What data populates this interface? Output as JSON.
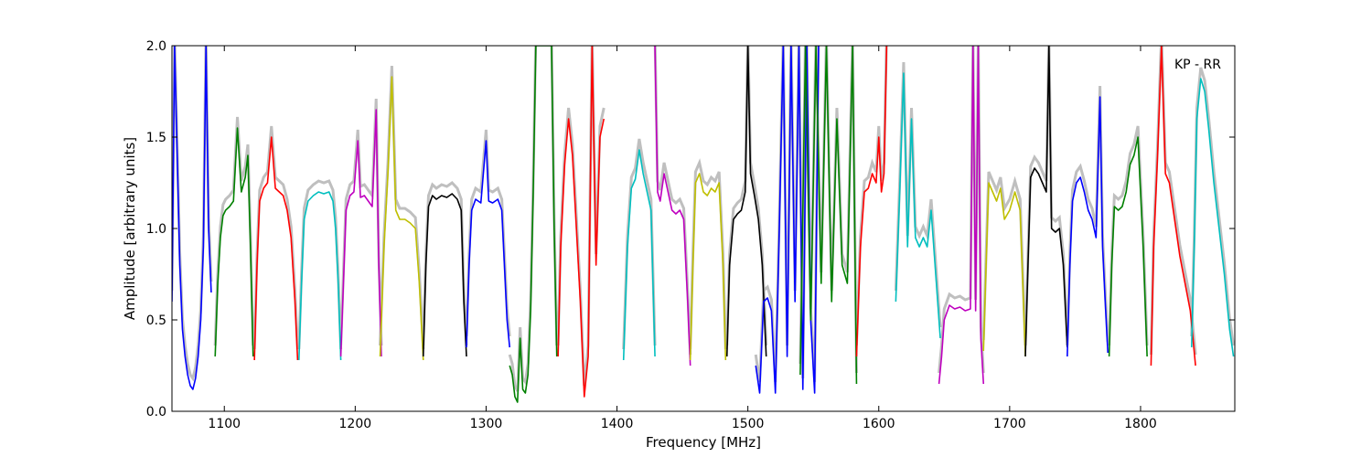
{
  "chart_data": {
    "type": "line",
    "title": "",
    "annotation": "KP - RR",
    "xlabel": "Frequency [MHz]",
    "ylabel": "Amplitude [arbitrary units]",
    "xlim": [
      1060,
      1872
    ],
    "ylim": [
      0.0,
      2.0
    ],
    "xticks": [
      1100,
      1200,
      1300,
      1400,
      1500,
      1600,
      1700,
      1800
    ],
    "xtick_labels": [
      "1100",
      "1200",
      "1300",
      "1400",
      "1500",
      "1600",
      "1700",
      "1800"
    ],
    "yticks": [
      0.0,
      0.5,
      1.0,
      1.5,
      2.0
    ],
    "ytick_labels": [
      "0.0",
      "0.5",
      "1.0",
      "1.5",
      "2.0"
    ],
    "grid": false,
    "background_color": "#bfbfbf",
    "series": [
      {
        "color": "#0000ff",
        "x": [
          1060,
          1062,
          1064,
          1066,
          1068,
          1070,
          1072,
          1074,
          1076,
          1078,
          1080,
          1082,
          1084,
          1086,
          1088,
          1090
        ],
        "y": [
          0.6,
          2.0,
          1.4,
          0.8,
          0.45,
          0.3,
          0.2,
          0.14,
          0.12,
          0.18,
          0.3,
          0.5,
          0.9,
          2.0,
          1.0,
          0.65
        ]
      },
      {
        "color": "#008000",
        "x": [
          1093,
          1095,
          1097,
          1099,
          1101,
          1104,
          1107,
          1110,
          1113,
          1116,
          1118,
          1120,
          1122
        ],
        "y": [
          0.3,
          0.7,
          0.95,
          1.07,
          1.1,
          1.12,
          1.15,
          1.55,
          1.2,
          1.28,
          1.4,
          0.9,
          0.3
        ]
      },
      {
        "color": "#ff0000",
        "x": [
          1123,
          1125,
          1127,
          1130,
          1133,
          1136,
          1139,
          1142,
          1145,
          1148,
          1151,
          1154,
          1156
        ],
        "y": [
          0.28,
          0.8,
          1.15,
          1.22,
          1.25,
          1.5,
          1.22,
          1.2,
          1.18,
          1.1,
          0.95,
          0.6,
          0.28
        ]
      },
      {
        "color": "#00bfbf",
        "x": [
          1157,
          1159,
          1161,
          1164,
          1168,
          1172,
          1176,
          1180,
          1183,
          1185,
          1187,
          1189
        ],
        "y": [
          0.28,
          0.7,
          1.05,
          1.15,
          1.18,
          1.2,
          1.19,
          1.2,
          1.15,
          1.0,
          0.7,
          0.28
        ]
      },
      {
        "color": "#bf00bf",
        "x": [
          1189,
          1191,
          1193,
          1196,
          1199,
          1202,
          1204,
          1207,
          1210,
          1213,
          1216,
          1218,
          1220
        ],
        "y": [
          0.3,
          0.7,
          1.1,
          1.18,
          1.2,
          1.48,
          1.17,
          1.18,
          1.15,
          1.12,
          1.65,
          0.8,
          0.3
        ]
      },
      {
        "color": "#bfbf00",
        "x": [
          1219,
          1222,
          1225,
          1228,
          1231,
          1234,
          1238,
          1242,
          1246,
          1249,
          1252
        ],
        "y": [
          0.3,
          0.9,
          1.3,
          1.83,
          1.1,
          1.05,
          1.05,
          1.03,
          1.0,
          0.7,
          0.28
        ]
      },
      {
        "color": "#000000",
        "x": [
          1252,
          1254,
          1256,
          1259,
          1262,
          1266,
          1270,
          1274,
          1278,
          1281,
          1283,
          1285
        ],
        "y": [
          0.3,
          0.8,
          1.12,
          1.18,
          1.16,
          1.18,
          1.17,
          1.19,
          1.16,
          1.1,
          0.6,
          0.3
        ]
      },
      {
        "color": "#0000ff",
        "x": [
          1285,
          1287,
          1289,
          1292,
          1296,
          1300,
          1302,
          1305,
          1309,
          1312,
          1314,
          1316,
          1318
        ],
        "y": [
          0.35,
          0.8,
          1.1,
          1.16,
          1.14,
          1.48,
          1.15,
          1.14,
          1.16,
          1.1,
          0.8,
          0.5,
          0.35
        ]
      },
      {
        "color": "#008000",
        "x": [
          1318,
          1320,
          1322,
          1324,
          1326,
          1328,
          1330,
          1332,
          1334,
          1336,
          1338,
          1340,
          1342,
          1344,
          1346,
          1348,
          1350,
          1352,
          1354
        ],
        "y": [
          0.25,
          0.2,
          0.08,
          0.05,
          0.4,
          0.12,
          0.1,
          0.2,
          0.55,
          1.2,
          2.0,
          2.0,
          2.0,
          2.0,
          2.0,
          2.0,
          2.0,
          1.0,
          0.3
        ]
      },
      {
        "color": "#ff0000",
        "x": [
          1355,
          1357,
          1360,
          1363,
          1366,
          1369,
          1372,
          1375,
          1378,
          1381,
          1384,
          1387,
          1390
        ],
        "y": [
          0.3,
          0.9,
          1.35,
          1.6,
          1.4,
          1.0,
          0.6,
          0.08,
          0.3,
          2.0,
          0.8,
          1.5,
          1.6
        ]
      },
      {
        "color": "#00bfbf",
        "x": [
          1405,
          1408,
          1411,
          1414,
          1417,
          1420,
          1423,
          1426,
          1429
        ],
        "y": [
          0.28,
          0.9,
          1.22,
          1.27,
          1.43,
          1.3,
          1.2,
          1.1,
          0.3
        ]
      },
      {
        "color": "#bf00bf",
        "x": [
          1429,
          1431,
          1433,
          1436,
          1439,
          1442,
          1445,
          1448,
          1451,
          1454,
          1456
        ],
        "y": [
          2.0,
          1.2,
          1.15,
          1.3,
          1.2,
          1.1,
          1.08,
          1.1,
          1.05,
          0.6,
          0.25
        ]
      },
      {
        "color": "#bfbf00",
        "x": [
          1456,
          1458,
          1460,
          1463,
          1466,
          1469,
          1472,
          1475,
          1478,
          1481,
          1483
        ],
        "y": [
          0.28,
          0.8,
          1.25,
          1.3,
          1.2,
          1.18,
          1.22,
          1.2,
          1.25,
          0.8,
          0.28
        ]
      },
      {
        "color": "#000000",
        "x": [
          1484,
          1486,
          1489,
          1492,
          1495,
          1498,
          1500,
          1502,
          1505,
          1508,
          1511,
          1514
        ],
        "y": [
          0.3,
          0.8,
          1.05,
          1.08,
          1.1,
          1.2,
          2.0,
          1.3,
          1.18,
          1.05,
          0.8,
          0.3
        ]
      },
      {
        "color": "#0000ff",
        "x": [
          1506,
          1509,
          1512,
          1515,
          1518,
          1521,
          1524,
          1527,
          1530,
          1533,
          1536,
          1539,
          1542,
          1545,
          1548,
          1551,
          1554
        ],
        "y": [
          0.25,
          0.1,
          0.6,
          0.62,
          0.55,
          0.1,
          1.0,
          2.0,
          0.3,
          2.0,
          0.6,
          2.0,
          0.12,
          2.0,
          0.5,
          0.1,
          2.0
        ]
      },
      {
        "color": "#008000",
        "x": [
          1540,
          1544,
          1548,
          1552,
          1556,
          1560,
          1564,
          1568,
          1572,
          1576,
          1580,
          1583
        ],
        "y": [
          0.2,
          2.0,
          0.5,
          2.0,
          0.7,
          2.0,
          0.6,
          1.6,
          0.8,
          0.7,
          2.0,
          0.15
        ]
      },
      {
        "color": "#ff0000",
        "x": [
          1583,
          1586,
          1589,
          1592,
          1595,
          1598,
          1600,
          1602,
          1604,
          1606
        ],
        "y": [
          0.3,
          0.9,
          1.2,
          1.22,
          1.3,
          1.25,
          1.5,
          1.2,
          1.3,
          2.0
        ]
      },
      {
        "color": "#00bfbf",
        "x": [
          1613,
          1616,
          1619,
          1622,
          1625,
          1628,
          1631,
          1634,
          1637,
          1640,
          1644,
          1647
        ],
        "y": [
          0.6,
          1.2,
          1.85,
          0.9,
          1.6,
          0.95,
          0.9,
          0.95,
          0.9,
          1.1,
          0.7,
          0.4
        ]
      },
      {
        "color": "#bf00bf",
        "x": [
          1646,
          1648,
          1650,
          1654,
          1658,
          1662,
          1666,
          1670,
          1672,
          1674,
          1676,
          1678,
          1680
        ],
        "y": [
          0.15,
          0.3,
          0.5,
          0.58,
          0.56,
          0.57,
          0.55,
          0.56,
          2.0,
          0.55,
          2.0,
          0.4,
          0.15
        ]
      },
      {
        "color": "#bfbf00",
        "x": [
          1680,
          1682,
          1684,
          1687,
          1690,
          1693,
          1696,
          1700,
          1704,
          1708,
          1710,
          1712
        ],
        "y": [
          0.33,
          0.8,
          1.25,
          1.2,
          1.15,
          1.22,
          1.05,
          1.1,
          1.2,
          1.1,
          0.7,
          0.3
        ]
      },
      {
        "color": "#000000",
        "x": [
          1712,
          1714,
          1716,
          1719,
          1722,
          1725,
          1728,
          1730,
          1732,
          1735,
          1738,
          1741,
          1744
        ],
        "y": [
          0.3,
          0.8,
          1.28,
          1.33,
          1.3,
          1.25,
          1.2,
          2.0,
          1.0,
          0.98,
          1.0,
          0.8,
          0.35
        ]
      },
      {
        "color": "#0000ff",
        "x": [
          1744,
          1746,
          1748,
          1751,
          1754,
          1757,
          1760,
          1763,
          1766,
          1769,
          1771,
          1773,
          1775
        ],
        "y": [
          0.3,
          0.8,
          1.15,
          1.25,
          1.28,
          1.2,
          1.1,
          1.05,
          0.95,
          1.72,
          0.9,
          0.6,
          0.32
        ]
      },
      {
        "color": "#008000",
        "x": [
          1776,
          1778,
          1780,
          1783,
          1786,
          1789,
          1792,
          1795,
          1798,
          1800,
          1802,
          1805
        ],
        "y": [
          0.3,
          0.8,
          1.12,
          1.1,
          1.12,
          1.2,
          1.35,
          1.4,
          1.5,
          1.2,
          0.9,
          0.3
        ]
      },
      {
        "color": "#ff0000",
        "x": [
          1808,
          1810,
          1813,
          1816,
          1819,
          1822,
          1826,
          1830,
          1834,
          1838,
          1842
        ],
        "y": [
          0.25,
          0.9,
          1.4,
          2.0,
          1.3,
          1.25,
          1.05,
          0.85,
          0.7,
          0.55,
          0.25
        ]
      },
      {
        "color": "#00bfbf",
        "x": [
          1839,
          1841,
          1843,
          1846,
          1849,
          1852,
          1856,
          1860,
          1864,
          1868,
          1871
        ],
        "y": [
          0.35,
          0.9,
          1.6,
          1.82,
          1.75,
          1.55,
          1.25,
          1.0,
          0.75,
          0.45,
          0.3
        ]
      }
    ]
  }
}
